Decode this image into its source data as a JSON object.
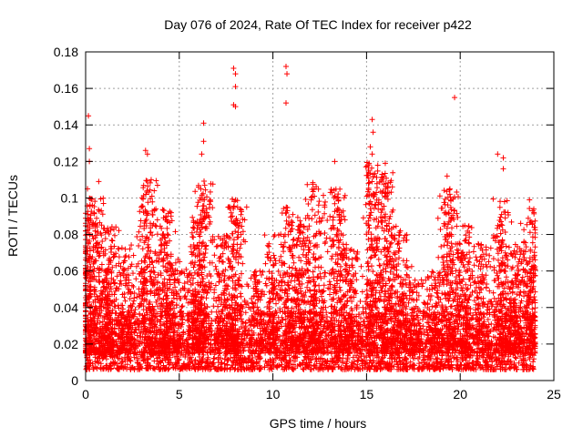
{
  "chart_data": {
    "type": "scatter",
    "title": "Day 076 of 2024, Rate Of TEC Index for receiver p422",
    "xlabel": "GPS time / hours",
    "ylabel": "ROTI / TECUs",
    "xlim": [
      0,
      25
    ],
    "ylim": [
      0,
      0.18
    ],
    "xticks": [
      0,
      5,
      10,
      15,
      20,
      25
    ],
    "xtick_labels": [
      "0",
      "5",
      "10",
      "15",
      "20",
      "25"
    ],
    "yticks": [
      0,
      0.02,
      0.04,
      0.06,
      0.08,
      0.1,
      0.12,
      0.14,
      0.16,
      0.18
    ],
    "ytick_labels": [
      "0",
      "0.02",
      "0.04",
      "0.06",
      "0.08",
      "0.1",
      "0.12",
      "0.14",
      "0.16",
      "0.18"
    ],
    "grid": true,
    "marker": "+",
    "series_color": "#ff0000",
    "notable_points": [
      {
        "x": 0.1,
        "y": 0.105
      },
      {
        "x": 0.15,
        "y": 0.145
      },
      {
        "x": 0.2,
        "y": 0.127
      },
      {
        "x": 0.2,
        "y": 0.12
      },
      {
        "x": 0.7,
        "y": 0.109
      },
      {
        "x": 3.2,
        "y": 0.126
      },
      {
        "x": 3.3,
        "y": 0.124
      },
      {
        "x": 3.5,
        "y": 0.11
      },
      {
        "x": 6.3,
        "y": 0.141
      },
      {
        "x": 6.3,
        "y": 0.131
      },
      {
        "x": 6.2,
        "y": 0.124
      },
      {
        "x": 7.9,
        "y": 0.171
      },
      {
        "x": 8.0,
        "y": 0.168
      },
      {
        "x": 8.0,
        "y": 0.161
      },
      {
        "x": 7.9,
        "y": 0.151
      },
      {
        "x": 8.0,
        "y": 0.15
      },
      {
        "x": 10.7,
        "y": 0.172
      },
      {
        "x": 10.75,
        "y": 0.168
      },
      {
        "x": 10.7,
        "y": 0.152
      },
      {
        "x": 13.3,
        "y": 0.12
      },
      {
        "x": 15.3,
        "y": 0.143
      },
      {
        "x": 15.35,
        "y": 0.136
      },
      {
        "x": 15.2,
        "y": 0.128
      },
      {
        "x": 15.3,
        "y": 0.124
      },
      {
        "x": 16.0,
        "y": 0.119
      },
      {
        "x": 19.7,
        "y": 0.155
      },
      {
        "x": 19.3,
        "y": 0.112
      },
      {
        "x": 22.0,
        "y": 0.124
      },
      {
        "x": 22.3,
        "y": 0.122
      },
      {
        "x": 22.3,
        "y": 0.116
      },
      {
        "x": 23.7,
        "y": 0.099
      }
    ],
    "bursts": [
      {
        "x": 0.15,
        "peak": 0.1,
        "n": 60
      },
      {
        "x": 0.7,
        "peak": 0.1,
        "n": 40
      },
      {
        "x": 1.3,
        "peak": 0.085,
        "n": 45
      },
      {
        "x": 2.2,
        "peak": 0.075,
        "n": 35
      },
      {
        "x": 3.3,
        "peak": 0.11,
        "n": 60
      },
      {
        "x": 4.2,
        "peak": 0.095,
        "n": 55
      },
      {
        "x": 4.8,
        "peak": 0.07,
        "n": 30
      },
      {
        "x": 5.9,
        "peak": 0.09,
        "n": 40
      },
      {
        "x": 6.3,
        "peak": 0.11,
        "n": 50
      },
      {
        "x": 7.3,
        "peak": 0.08,
        "n": 35
      },
      {
        "x": 8.0,
        "peak": 0.1,
        "n": 50
      },
      {
        "x": 9.2,
        "peak": 0.06,
        "n": 25
      },
      {
        "x": 10.0,
        "peak": 0.08,
        "n": 35
      },
      {
        "x": 10.9,
        "peak": 0.095,
        "n": 45
      },
      {
        "x": 11.6,
        "peak": 0.09,
        "n": 40
      },
      {
        "x": 12.3,
        "peak": 0.11,
        "n": 50
      },
      {
        "x": 13.4,
        "peak": 0.105,
        "n": 55
      },
      {
        "x": 14.1,
        "peak": 0.075,
        "n": 35
      },
      {
        "x": 15.3,
        "peak": 0.12,
        "n": 60
      },
      {
        "x": 16.1,
        "peak": 0.115,
        "n": 60
      },
      {
        "x": 16.8,
        "peak": 0.085,
        "n": 40
      },
      {
        "x": 17.6,
        "peak": 0.055,
        "n": 25
      },
      {
        "x": 18.6,
        "peak": 0.06,
        "n": 30
      },
      {
        "x": 19.4,
        "peak": 0.105,
        "n": 55
      },
      {
        "x": 20.2,
        "peak": 0.085,
        "n": 45
      },
      {
        "x": 21.1,
        "peak": 0.075,
        "n": 35
      },
      {
        "x": 22.2,
        "peak": 0.1,
        "n": 50
      },
      {
        "x": 22.9,
        "peak": 0.075,
        "n": 40
      },
      {
        "x": 23.7,
        "peak": 0.095,
        "n": 50
      }
    ],
    "x_range_data": [
      0,
      24
    ]
  }
}
